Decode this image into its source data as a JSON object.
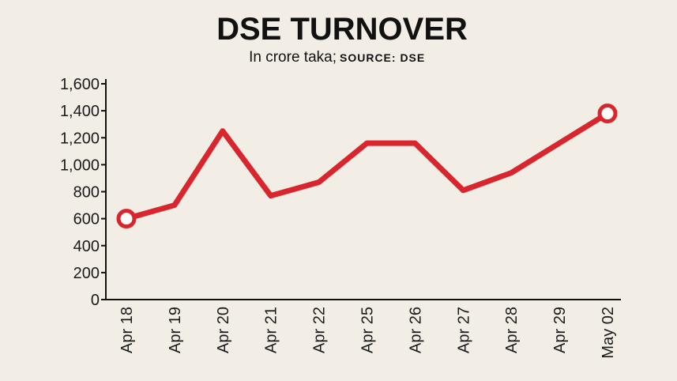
{
  "chart_data": {
    "type": "line",
    "title": "DSE TURNOVER",
    "subtitle": "In crore taka;",
    "source": "SOURCE: DSE",
    "categories": [
      "Apr 18",
      "Apr 19",
      "Apr 20",
      "Apr 21",
      "Apr 22",
      "Apr 25",
      "Apr 26",
      "Apr 27",
      "Apr 28",
      "Apr 29",
      "May 02"
    ],
    "series": [
      {
        "color": "#d9262e",
        "values": [
          600,
          700,
          1250,
          770,
          870,
          1160,
          1160,
          810,
          940,
          1160,
          1380
        ]
      }
    ],
    "ylim": [
      0,
      1600
    ],
    "yticks": [
      0,
      200,
      400,
      600,
      800,
      {
        "value": 1000,
        "label": "1,000"
      },
      {
        "value": 1200,
        "label": "1,200"
      },
      {
        "value": 1400,
        "label": "1,400"
      },
      {
        "value": 1600,
        "label": "1,600"
      }
    ]
  }
}
